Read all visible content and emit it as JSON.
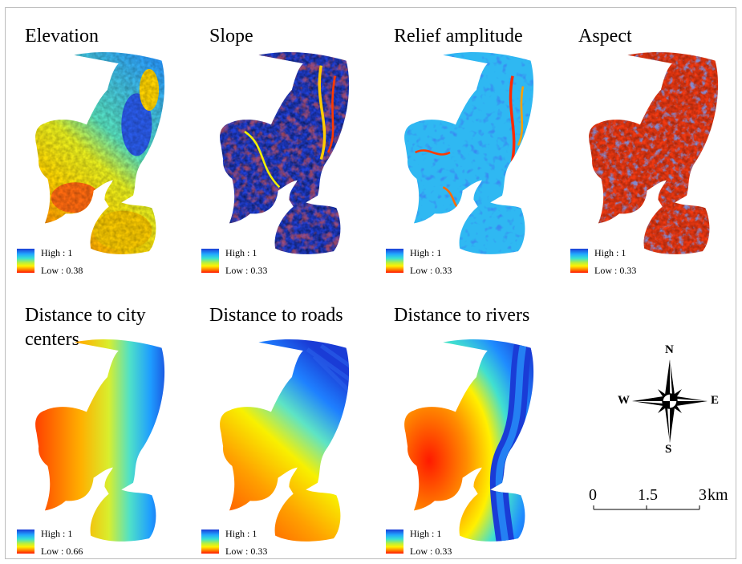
{
  "panels": [
    {
      "title": "Elevation",
      "legend": {
        "high": "High : 1",
        "low": "Low : 0.38"
      }
    },
    {
      "title": "Slope",
      "legend": {
        "high": "High : 1",
        "low": "Low : 0.33"
      }
    },
    {
      "title": "Relief amplitude",
      "legend": {
        "high": "High : 1",
        "low": "Low : 0.33"
      }
    },
    {
      "title": "Aspect",
      "legend": {
        "high": "High : 1",
        "low": "Low : 0.33"
      }
    },
    {
      "title": "Distance to city centers",
      "legend": {
        "high": "High : 1",
        "low": "Low : 0.66"
      }
    },
    {
      "title": "Distance to roads",
      "legend": {
        "high": "High : 1",
        "low": "Low : 0.33"
      }
    },
    {
      "title": "Distance to rivers",
      "legend": {
        "high": "High : 1",
        "low": "Low : 0.33"
      }
    }
  ],
  "compass": {
    "n": "N",
    "s": "S",
    "e": "E",
    "w": "W"
  },
  "scale_bar": {
    "ticks": [
      "0",
      "1.5",
      "3"
    ],
    "unit": "km"
  },
  "color_ramp": [
    "#1a3cd6",
    "#21a6ff",
    "#39e2d2",
    "#b8ef3e",
    "#fff200",
    "#ff8a00",
    "#ff1500"
  ]
}
